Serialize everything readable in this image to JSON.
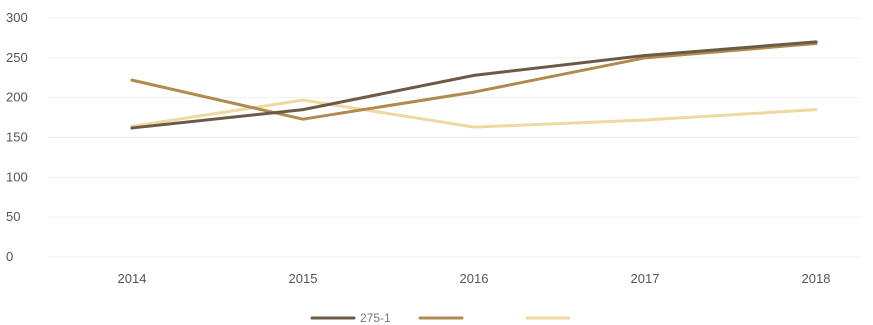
{
  "chart_data": {
    "type": "line",
    "categories": [
      "2014",
      "2015",
      "2016",
      "2017",
      "2018"
    ],
    "ylim": [
      0,
      300
    ],
    "yticks": [
      "0",
      "50",
      "100",
      "150",
      "200",
      "250",
      "300"
    ],
    "grid": true,
    "legend_position": "bottom",
    "series": [
      {
        "name": "275-1",
        "color": "#6b5a45",
        "values": [
          162,
          185,
          228,
          253,
          270
        ]
      },
      {
        "name": "",
        "color": "#b08a4f",
        "values": [
          222,
          173,
          207,
          250,
          268
        ]
      },
      {
        "name": "",
        "color": "#f0d9a0",
        "values": [
          164,
          197,
          163,
          172,
          185
        ]
      }
    ]
  }
}
